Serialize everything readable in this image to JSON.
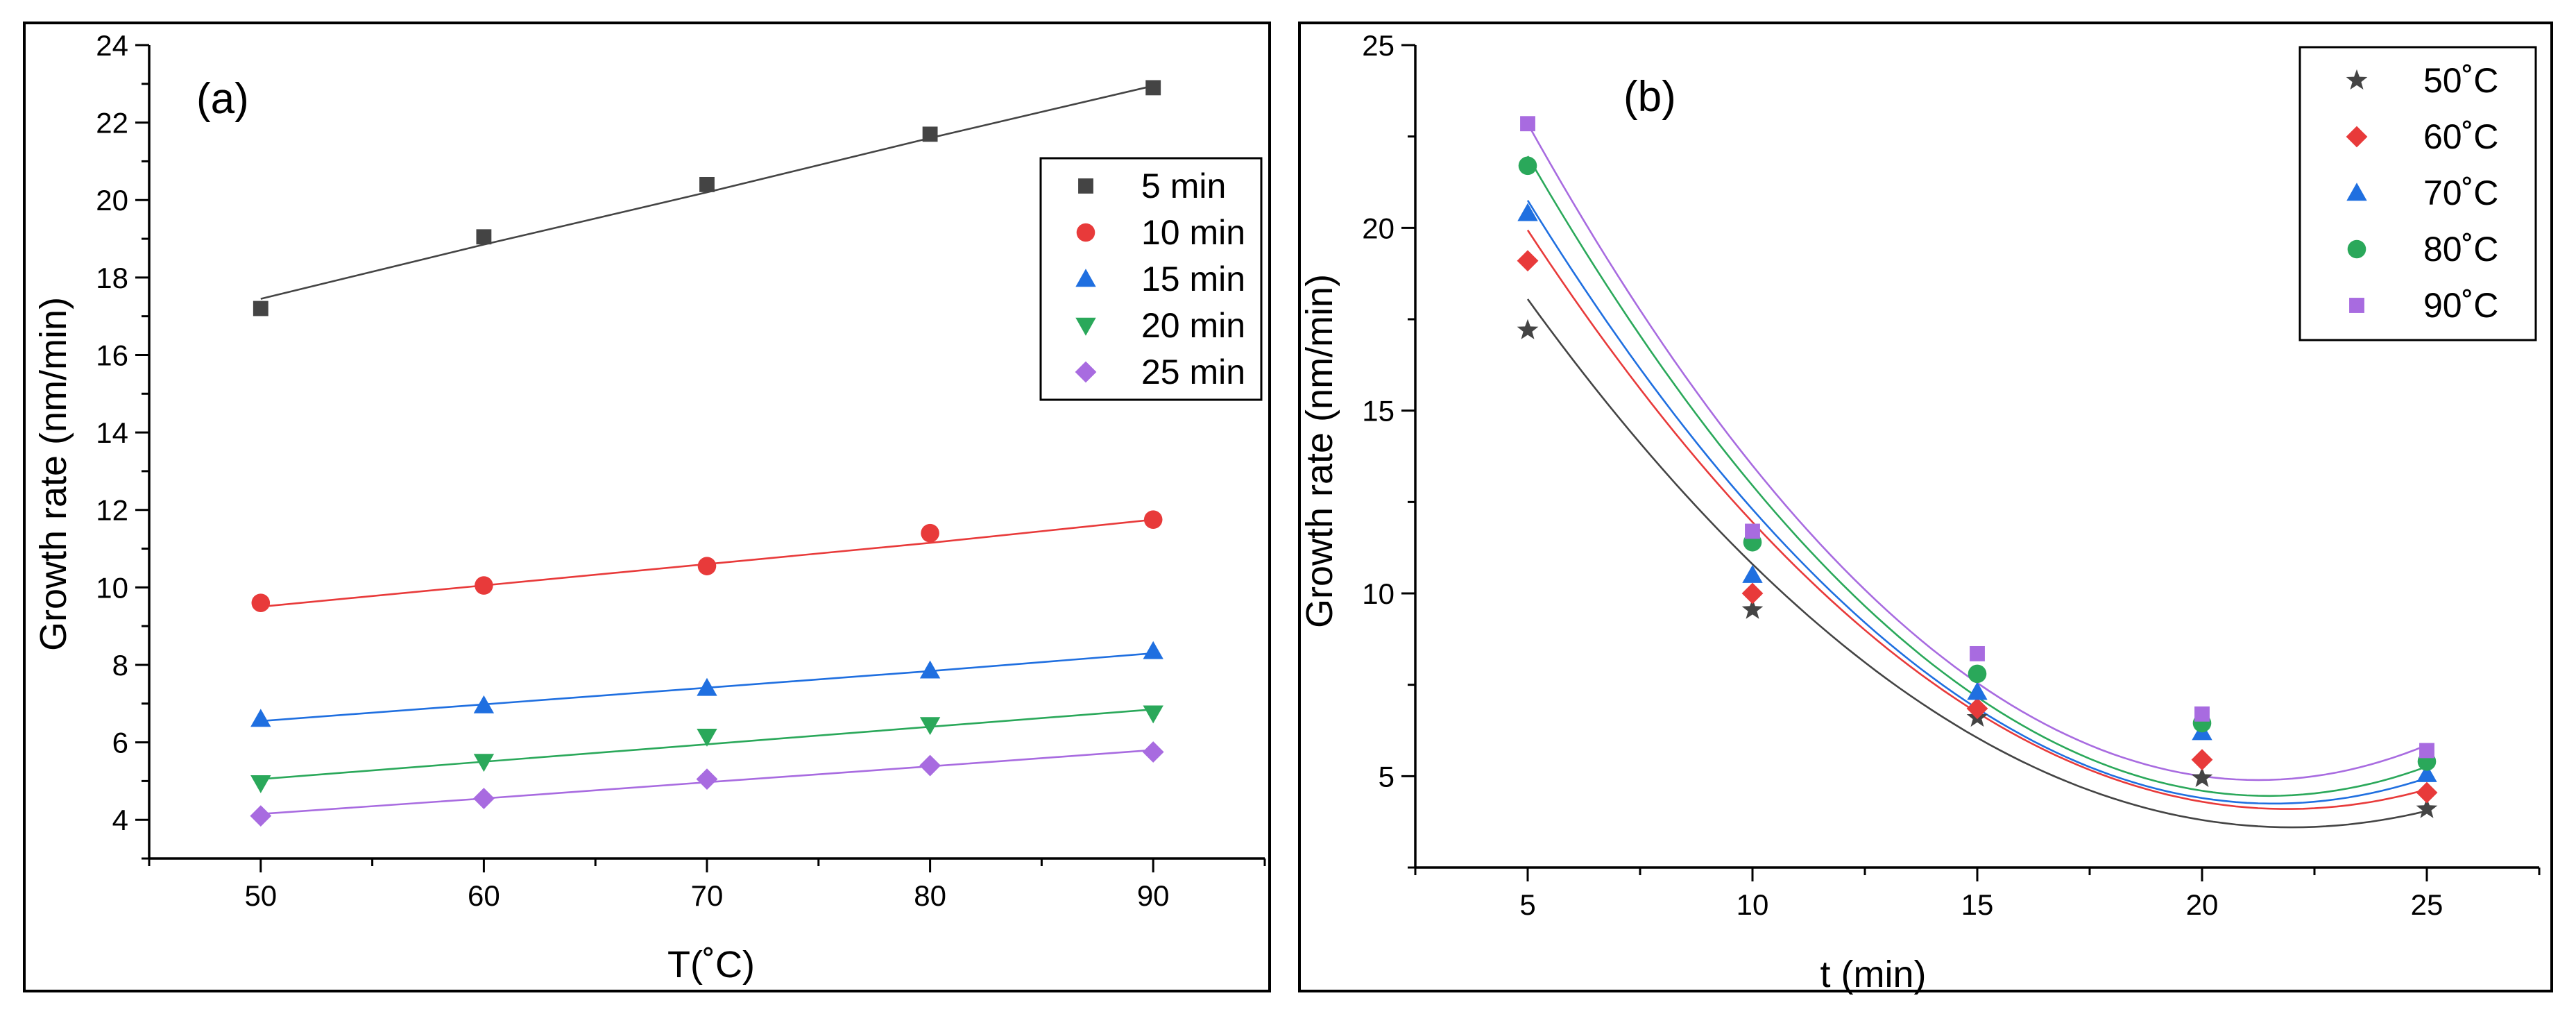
{
  "chart_data": [
    {
      "panel_label": "(a)",
      "type": "scatter",
      "fit": "linear",
      "xlabel": "T(˚C)",
      "ylabel": "Growth rate (nm/min)",
      "x": [
        50,
        60,
        70,
        80,
        90
      ],
      "xticks": [
        50,
        60,
        70,
        80,
        90
      ],
      "xlim": [
        45,
        95
      ],
      "ylim": [
        3,
        24
      ],
      "yticks": [
        4,
        6,
        8,
        10,
        12,
        14,
        16,
        18,
        20,
        22,
        24
      ],
      "grid": false,
      "legend_position": "top-right",
      "series": [
        {
          "name": "5 min",
          "marker": "square",
          "color": "#444444",
          "values": [
            17.2,
            19.05,
            20.4,
            21.7,
            22.9
          ],
          "fit_line": [
            17.45,
            18.85,
            20.2,
            21.6,
            22.95
          ]
        },
        {
          "name": "10 min",
          "marker": "circle",
          "color": "#e83a3a",
          "values": [
            9.6,
            10.05,
            10.55,
            11.4,
            11.75
          ],
          "fit_line": [
            9.5,
            10.05,
            10.6,
            11.15,
            11.75
          ]
        },
        {
          "name": "15 min",
          "marker": "triangle-up",
          "color": "#1f6fe0",
          "values": [
            6.6,
            6.95,
            7.4,
            7.85,
            8.35
          ],
          "fit_line": [
            6.55,
            6.98,
            7.41,
            7.84,
            8.3
          ]
        },
        {
          "name": "20 min",
          "marker": "triangle-down",
          "color": "#2aa85a",
          "values": [
            4.95,
            5.5,
            6.15,
            6.45,
            6.75
          ],
          "fit_line": [
            5.05,
            5.5,
            5.95,
            6.4,
            6.85
          ]
        },
        {
          "name": "25 min",
          "marker": "diamond",
          "color": "#a86be0",
          "values": [
            4.1,
            4.55,
            5.05,
            5.4,
            5.75
          ],
          "fit_line": [
            4.15,
            4.55,
            4.97,
            5.38,
            5.8
          ]
        }
      ]
    },
    {
      "panel_label": "(b)",
      "type": "scatter",
      "fit": "polynomial",
      "xlabel": "t (min)",
      "ylabel": "Growth rate (nm/min)",
      "x": [
        5,
        10,
        15,
        20,
        25
      ],
      "xticks": [
        5,
        10,
        15,
        20,
        25
      ],
      "xlim": [
        2.5,
        27.5
      ],
      "ylim": [
        2.5,
        25
      ],
      "yticks": [
        5,
        10,
        15,
        20,
        25
      ],
      "grid": false,
      "legend_position": "top-right",
      "series": [
        {
          "name": "50˚C",
          "marker": "star",
          "color": "#444444",
          "values": [
            17.2,
            9.55,
            6.6,
            4.95,
            4.1
          ],
          "fit_coef": [
            27.8,
            -2.2,
            0.05
          ]
        },
        {
          "name": "60˚C",
          "marker": "diamond",
          "color": "#e83a3a",
          "values": [
            19.1,
            10.0,
            6.85,
            5.45,
            4.55
          ],
          "fit_coef": [
            30.7,
            -2.43,
            0.0555
          ]
        },
        {
          "name": "70˚C",
          "marker": "triangle-up",
          "color": "#1f6fe0",
          "values": [
            20.4,
            10.5,
            7.3,
            6.2,
            5.05
          ],
          "fit_coef": [
            32.2,
            -2.59,
            0.06
          ]
        },
        {
          "name": "80˚C",
          "marker": "circle",
          "color": "#2aa85a",
          "values": [
            21.7,
            11.4,
            7.8,
            6.45,
            5.4
          ],
          "fit_coef": [
            34.2,
            -2.77,
            0.0645
          ]
        },
        {
          "name": "90˚C",
          "marker": "square",
          "color": "#a86be0",
          "values": [
            22.85,
            11.7,
            8.35,
            6.7,
            5.7
          ],
          "fit_coef": [
            35.6,
            -2.89,
            0.068
          ]
        }
      ]
    }
  ]
}
